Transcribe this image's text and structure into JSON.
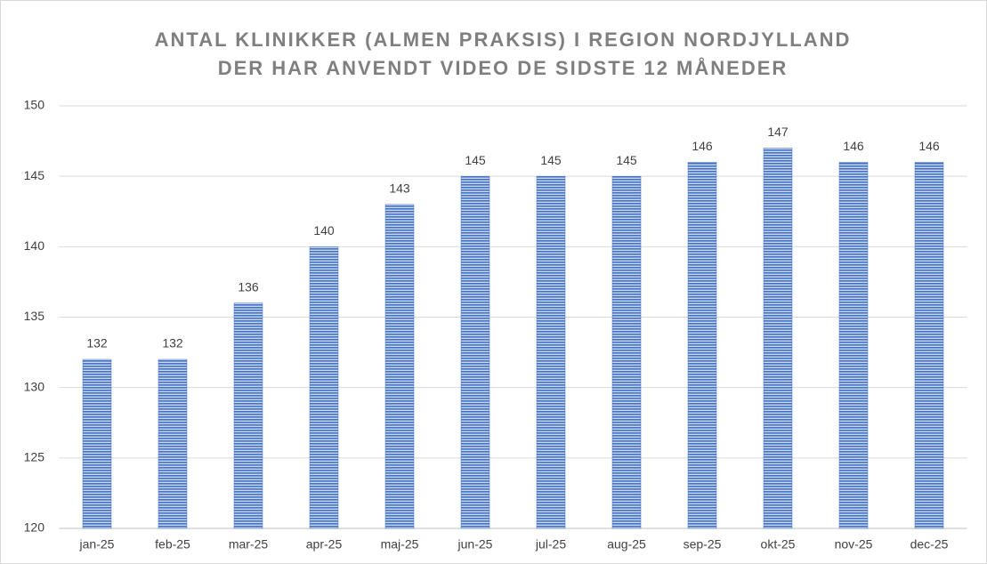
{
  "chart_data": {
    "type": "bar",
    "title": [
      "ANTAL KLINIKKER (ALMEN PRAKSIS) I REGION NORDJYLLAND",
      "DER HAR ANVENDT VIDEO DE SIDSTE 12 MÅNEDER"
    ],
    "categories": [
      "jan-25",
      "feb-25",
      "mar-25",
      "apr-25",
      "maj-25",
      "jun-25",
      "jul-25",
      "aug-25",
      "sep-25",
      "okt-25",
      "nov-25",
      "dec-25"
    ],
    "values": [
      132,
      132,
      136,
      140,
      143,
      145,
      145,
      145,
      146,
      147,
      146,
      146
    ],
    "color": "#4472c4",
    "ylim": [
      120,
      150
    ],
    "yticks": [
      120,
      125,
      130,
      135,
      140,
      145,
      150
    ],
    "grid": true
  }
}
